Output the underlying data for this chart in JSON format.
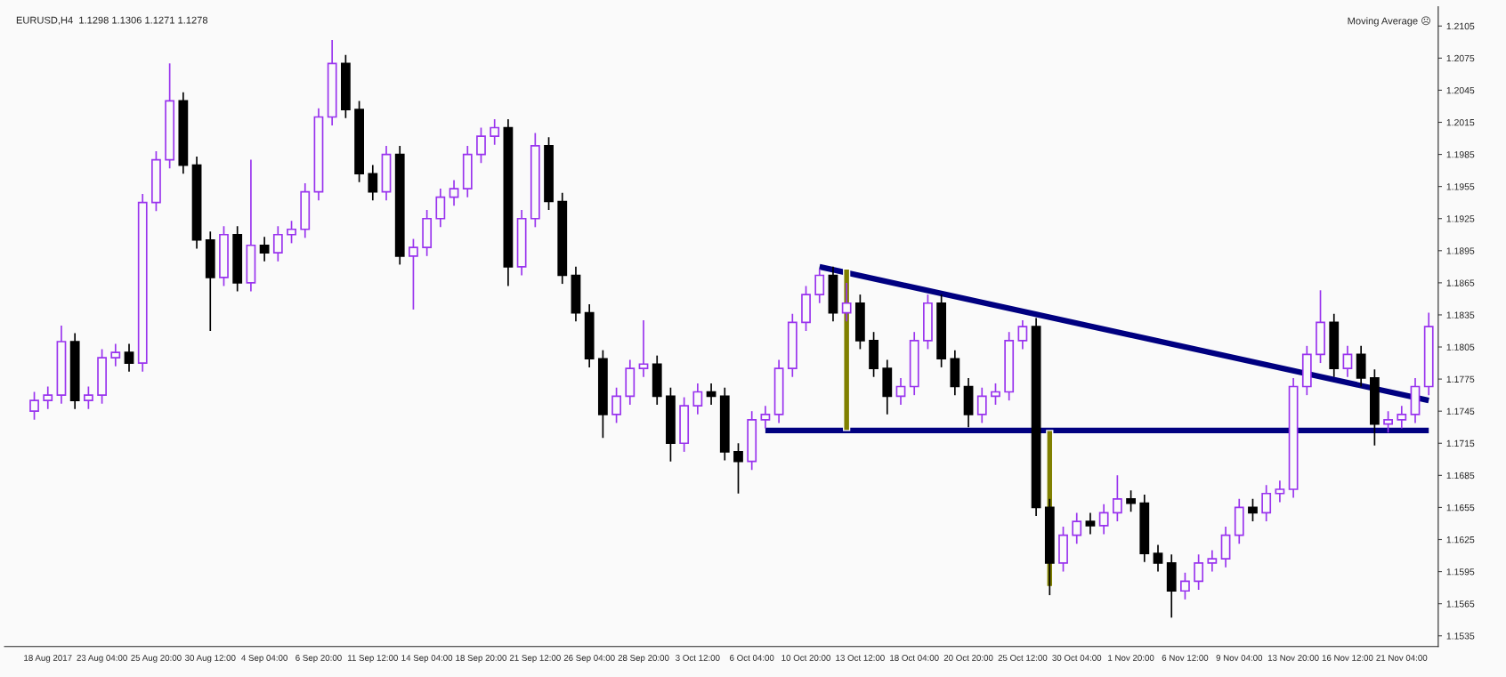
{
  "chart_data": {
    "type": "candlestick",
    "annotations": [
      "EURUSD,H4  1.1298 1.1306 1.1271 1.1278",
      "Moving Average ☹"
    ],
    "categories": [
      null,
      "18 Aug 2017",
      null,
      null,
      null,
      "23 Aug 04:00",
      null,
      null,
      null,
      "25 Aug 20:00",
      null,
      null,
      null,
      "30 Aug 12:00",
      null,
      null,
      null,
      "4 Sep 04:00",
      null,
      null,
      null,
      "6 Sep 20:00",
      null,
      null,
      null,
      "11 Sep 12:00",
      null,
      null,
      null,
      "14 Sep 04:00",
      null,
      null,
      null,
      "18 Sep 20:00",
      null,
      null,
      null,
      "21 Sep 12:00",
      null,
      null,
      null,
      "26 Sep 04:00",
      null,
      null,
      null,
      "28 Sep 20:00",
      null,
      null,
      null,
      "3 Oct 12:00",
      null,
      null,
      null,
      "6 Oct 04:00",
      null,
      null,
      null,
      "10 Oct 20:00",
      null,
      null,
      null,
      "13 Oct 12:00",
      null,
      null,
      null,
      "18 Oct 04:00",
      null,
      null,
      null,
      "20 Oct 20:00",
      null,
      null,
      null,
      "25 Oct 12:00",
      null,
      null,
      null,
      "30 Oct 04:00",
      null,
      null,
      null,
      "1 Nov 20:00",
      null,
      null,
      null,
      "6 Nov 12:00",
      null,
      null,
      null,
      "9 Nov 04:00",
      null,
      null,
      null,
      "13 Nov 20:00",
      null,
      null,
      null,
      "16 Nov 12:00",
      null,
      null,
      null,
      "21 Nov 04:00",
      null,
      null
    ],
    "ohlc": [
      [
        1.1745,
        1.1763,
        1.1737,
        1.1755
      ],
      [
        1.1755,
        1.1768,
        1.1747,
        1.176
      ],
      [
        1.176,
        1.1825,
        1.1752,
        1.181
      ],
      [
        1.181,
        1.1818,
        1.1747,
        1.1755
      ],
      [
        1.1755,
        1.1768,
        1.1747,
        1.176
      ],
      [
        1.176,
        1.1803,
        1.1752,
        1.1795
      ],
      [
        1.1795,
        1.1808,
        1.1787,
        1.18
      ],
      [
        1.18,
        1.1808,
        1.1782,
        1.179
      ],
      [
        1.179,
        1.1948,
        1.1782,
        1.194
      ],
      [
        1.194,
        1.1988,
        1.1932,
        1.198
      ],
      [
        1.198,
        1.207,
        1.1972,
        1.2035
      ],
      [
        1.2035,
        1.2043,
        1.1967,
        1.1975
      ],
      [
        1.1975,
        1.1983,
        1.1897,
        1.1905
      ],
      [
        1.1905,
        1.1913,
        1.182,
        1.187
      ],
      [
        1.187,
        1.1918,
        1.1862,
        1.191
      ],
      [
        1.191,
        1.1918,
        1.1857,
        1.1865
      ],
      [
        1.1865,
        1.198,
        1.1857,
        1.19
      ],
      [
        1.19,
        1.1908,
        1.1885,
        1.1893
      ],
      [
        1.1893,
        1.1918,
        1.1885,
        1.191
      ],
      [
        1.191,
        1.1923,
        1.1902,
        1.1915
      ],
      [
        1.1915,
        1.1958,
        1.1907,
        1.195
      ],
      [
        1.195,
        1.2028,
        1.1942,
        1.202
      ],
      [
        1.202,
        1.2092,
        1.2012,
        1.207
      ],
      [
        1.207,
        1.2078,
        1.2019,
        1.2027
      ],
      [
        1.2027,
        1.2035,
        1.1959,
        1.1967
      ],
      [
        1.1967,
        1.1975,
        1.1942,
        1.195
      ],
      [
        1.195,
        1.1993,
        1.1942,
        1.1985
      ],
      [
        1.1985,
        1.1993,
        1.1882,
        1.189
      ],
      [
        1.189,
        1.1906,
        1.184,
        1.1898
      ],
      [
        1.1898,
        1.1933,
        1.189,
        1.1925
      ],
      [
        1.1925,
        1.1953,
        1.1917,
        1.1945
      ],
      [
        1.1945,
        1.1961,
        1.1937,
        1.1953
      ],
      [
        1.1953,
        1.1993,
        1.1945,
        1.1985
      ],
      [
        1.1985,
        1.201,
        1.1977,
        1.2002
      ],
      [
        1.2002,
        1.2018,
        1.1994,
        1.201
      ],
      [
        1.201,
        1.2018,
        1.1862,
        1.188
      ],
      [
        1.188,
        1.1933,
        1.1872,
        1.1925
      ],
      [
        1.1925,
        1.2005,
        1.1917,
        1.1993
      ],
      [
        1.1993,
        1.2001,
        1.1933,
        1.1941
      ],
      [
        1.1941,
        1.1949,
        1.1864,
        1.1872
      ],
      [
        1.1872,
        1.188,
        1.1829,
        1.1837
      ],
      [
        1.1837,
        1.1845,
        1.1786,
        1.1794
      ],
      [
        1.1794,
        1.1802,
        1.172,
        1.1742
      ],
      [
        1.1742,
        1.1767,
        1.1734,
        1.1759
      ],
      [
        1.1759,
        1.1793,
        1.1751,
        1.1785
      ],
      [
        1.1785,
        1.183,
        1.1777,
        1.1789
      ],
      [
        1.1789,
        1.1797,
        1.1751,
        1.1759
      ],
      [
        1.1759,
        1.1767,
        1.1698,
        1.1715
      ],
      [
        1.1715,
        1.1758,
        1.1707,
        1.175
      ],
      [
        1.175,
        1.1771,
        1.1742,
        1.1763
      ],
      [
        1.1763,
        1.1771,
        1.1751,
        1.1759
      ],
      [
        1.1759,
        1.1767,
        1.1699,
        1.1707
      ],
      [
        1.1707,
        1.1715,
        1.1668,
        1.1698
      ],
      [
        1.1698,
        1.1745,
        1.169,
        1.1737
      ],
      [
        1.1737,
        1.175,
        1.1729,
        1.1742
      ],
      [
        1.1742,
        1.1793,
        1.1734,
        1.1785
      ],
      [
        1.1785,
        1.1836,
        1.1777,
        1.1828
      ],
      [
        1.1828,
        1.1862,
        1.182,
        1.1854
      ],
      [
        1.1854,
        1.1878,
        1.1846,
        1.1872
      ],
      [
        1.1872,
        1.188,
        1.1829,
        1.1837
      ],
      [
        1.1837,
        1.1865,
        1.1829,
        1.1846
      ],
      [
        1.1846,
        1.1854,
        1.1803,
        1.1811
      ],
      [
        1.1811,
        1.1819,
        1.1777,
        1.1785
      ],
      [
        1.1785,
        1.1793,
        1.1742,
        1.1759
      ],
      [
        1.1759,
        1.1776,
        1.1751,
        1.1768
      ],
      [
        1.1768,
        1.1819,
        1.176,
        1.1811
      ],
      [
        1.1811,
        1.1854,
        1.1803,
        1.1846
      ],
      [
        1.1846,
        1.1854,
        1.1786,
        1.1794
      ],
      [
        1.1794,
        1.1802,
        1.176,
        1.1768
      ],
      [
        1.1768,
        1.1776,
        1.173,
        1.1742
      ],
      [
        1.1742,
        1.1767,
        1.1734,
        1.1759
      ],
      [
        1.1759,
        1.1771,
        1.1751,
        1.1763
      ],
      [
        1.1763,
        1.1819,
        1.1755,
        1.1811
      ],
      [
        1.1811,
        1.183,
        1.1803,
        1.1824
      ],
      [
        1.1824,
        1.1832,
        1.1647,
        1.1655
      ],
      [
        1.1655,
        1.1663,
        1.1573,
        1.1603
      ],
      [
        1.1603,
        1.1637,
        1.1595,
        1.1629
      ],
      [
        1.1629,
        1.165,
        1.1621,
        1.1642
      ],
      [
        1.1642,
        1.165,
        1.163,
        1.1638
      ],
      [
        1.1638,
        1.1658,
        1.163,
        1.165
      ],
      [
        1.165,
        1.1685,
        1.1642,
        1.1663
      ],
      [
        1.1663,
        1.1671,
        1.1651,
        1.1659
      ],
      [
        1.1659,
        1.1667,
        1.1604,
        1.1612
      ],
      [
        1.1612,
        1.162,
        1.1595,
        1.1603
      ],
      [
        1.1603,
        1.1611,
        1.1552,
        1.1577
      ],
      [
        1.1577,
        1.1594,
        1.1569,
        1.1586
      ],
      [
        1.1586,
        1.1611,
        1.1578,
        1.1603
      ],
      [
        1.1603,
        1.1615,
        1.1595,
        1.1607
      ],
      [
        1.1607,
        1.1637,
        1.1599,
        1.1629
      ],
      [
        1.1629,
        1.1663,
        1.1621,
        1.1655
      ],
      [
        1.1655,
        1.1663,
        1.1642,
        1.165
      ],
      [
        1.165,
        1.1676,
        1.1642,
        1.1668
      ],
      [
        1.1668,
        1.168,
        1.166,
        1.1672
      ],
      [
        1.1672,
        1.1776,
        1.1664,
        1.1768
      ],
      [
        1.1768,
        1.1806,
        1.176,
        1.1798
      ],
      [
        1.1798,
        1.1858,
        1.179,
        1.1828
      ],
      [
        1.1828,
        1.1836,
        1.1777,
        1.1785
      ],
      [
        1.1785,
        1.1806,
        1.1777,
        1.1798
      ],
      [
        1.1798,
        1.1806,
        1.1768,
        1.1776
      ],
      [
        1.1776,
        1.1784,
        1.1713,
        1.1733
      ],
      [
        1.1733,
        1.1745,
        1.1725,
        1.1737
      ],
      [
        1.1737,
        1.175,
        1.1729,
        1.1742
      ],
      [
        1.1742,
        1.1776,
        1.1734,
        1.1768
      ],
      [
        1.1768,
        1.1837,
        1.176,
        1.1824
      ]
    ],
    "colors": [
      "#9933ee",
      "#9933ee",
      "#9933ee",
      "#000000",
      "#9933ee",
      "#9933ee",
      "#9933ee",
      "#000000",
      "#9933ee",
      "#9933ee",
      "#9933ee",
      "#000000",
      "#000000",
      "#000000",
      "#9933ee",
      "#000000",
      "#9933ee",
      "#000000",
      "#9933ee",
      "#9933ee",
      "#9933ee",
      "#9933ee",
      "#9933ee",
      "#000000",
      "#000000",
      "#000000",
      "#9933ee",
      "#000000",
      "#9933ee",
      "#9933ee",
      "#9933ee",
      "#9933ee",
      "#9933ee",
      "#9933ee",
      "#9933ee",
      "#000000",
      "#9933ee",
      "#9933ee",
      "#000000",
      "#000000",
      "#000000",
      "#000000",
      "#000000",
      "#9933ee",
      "#9933ee",
      "#9933ee",
      "#000000",
      "#000000",
      "#9933ee",
      "#9933ee",
      "#000000",
      "#000000",
      "#000000",
      "#9933ee",
      "#9933ee",
      "#9933ee",
      "#9933ee",
      "#9933ee",
      "#9933ee",
      "#000000",
      "#9933ee",
      "#000000",
      "#000000",
      "#000000",
      "#9933ee",
      "#9933ee",
      "#9933ee",
      "#000000",
      "#000000",
      "#000000",
      "#9933ee",
      "#9933ee",
      "#9933ee",
      "#9933ee",
      "#000000",
      "#000000",
      "#9933ee",
      "#9933ee",
      "#000000",
      "#9933ee",
      "#9933ee",
      "#000000",
      "#000000",
      "#000000",
      "#000000",
      "#9933ee",
      "#9933ee",
      "#9933ee",
      "#9933ee",
      "#9933ee",
      "#000000",
      "#9933ee",
      "#9933ee",
      "#9933ee",
      "#9933ee",
      "#9933ee",
      "#000000",
      "#9933ee",
      "#000000",
      "#000000",
      "#9933ee",
      "#9933ee",
      "#9933ee",
      "#9933ee"
    ],
    "series": [
      {
        "type": "line",
        "color": "#000080",
        "values": [
          null,
          null,
          null,
          null,
          null,
          null,
          null,
          null,
          null,
          null,
          null,
          null,
          null,
          null,
          null,
          null,
          null,
          null,
          null,
          null,
          null,
          null,
          null,
          null,
          null,
          null,
          null,
          null,
          null,
          null,
          null,
          null,
          null,
          null,
          null,
          null,
          null,
          null,
          null,
          null,
          null,
          null,
          null,
          null,
          null,
          null,
          null,
          null,
          null,
          null,
          null,
          null,
          null,
          null,
          null,
          null,
          null,
          null,
          1.188,
          null,
          null,
          null,
          null,
          null,
          null,
          null,
          null,
          null,
          null,
          null,
          null,
          null,
          null,
          null,
          null,
          null,
          null,
          null,
          null,
          null,
          null,
          null,
          null,
          null,
          null,
          null,
          null,
          null,
          null,
          null,
          null,
          null,
          null,
          null,
          null,
          null,
          null,
          null,
          null,
          null,
          null,
          null,
          null,
          1.1755
        ]
      },
      {
        "type": "line",
        "color": "#000080",
        "values": [
          null,
          null,
          null,
          null,
          null,
          null,
          null,
          null,
          null,
          null,
          null,
          null,
          null,
          null,
          null,
          null,
          null,
          null,
          null,
          null,
          null,
          null,
          null,
          null,
          null,
          null,
          null,
          null,
          null,
          null,
          null,
          null,
          null,
          null,
          null,
          null,
          null,
          null,
          null,
          null,
          null,
          null,
          null,
          null,
          null,
          null,
          null,
          null,
          null,
          null,
          null,
          null,
          null,
          null,
          1.1727,
          null,
          null,
          null,
          null,
          null,
          null,
          null,
          null,
          null,
          null,
          null,
          null,
          null,
          null,
          null,
          null,
          null,
          null,
          null,
          null,
          null,
          null,
          null,
          null,
          null,
          null,
          null,
          null,
          null,
          null,
          null,
          null,
          null,
          null,
          null,
          null,
          null,
          null,
          null,
          null,
          null,
          null,
          null,
          null,
          null,
          null,
          null,
          null,
          1.1727
        ]
      },
      {
        "type": "bar",
        "color": "#808000",
        "values": [
          null,
          null,
          null,
          null,
          null,
          null,
          null,
          null,
          null,
          null,
          null,
          null,
          null,
          null,
          null,
          null,
          null,
          null,
          null,
          null,
          null,
          null,
          null,
          null,
          null,
          null,
          null,
          null,
          null,
          null,
          null,
          null,
          null,
          null,
          null,
          null,
          null,
          null,
          null,
          null,
          null,
          null,
          null,
          null,
          null,
          null,
          null,
          null,
          null,
          null,
          null,
          null,
          null,
          null,
          null,
          null,
          null,
          null,
          null,
          null,
          0.0151,
          null,
          null,
          null,
          null,
          null,
          null,
          null,
          null,
          null,
          null,
          null,
          null,
          null,
          null,
          -0.0146,
          null,
          null,
          null,
          null,
          null,
          null,
          null,
          null,
          null,
          null,
          null,
          null,
          null,
          null,
          null,
          null,
          null,
          null,
          null,
          null,
          null,
          null,
          null,
          null,
          null,
          null,
          null,
          null
        ],
        "base": [
          null,
          null,
          null,
          null,
          null,
          null,
          null,
          null,
          null,
          null,
          null,
          null,
          null,
          null,
          null,
          null,
          null,
          null,
          null,
          null,
          null,
          null,
          null,
          null,
          null,
          null,
          null,
          null,
          null,
          null,
          null,
          null,
          null,
          null,
          null,
          null,
          null,
          null,
          null,
          null,
          null,
          null,
          null,
          null,
          null,
          null,
          null,
          null,
          null,
          null,
          null,
          null,
          null,
          null,
          null,
          null,
          null,
          null,
          null,
          null,
          1.1727,
          null,
          null,
          null,
          null,
          null,
          null,
          null,
          null,
          null,
          null,
          null,
          null,
          null,
          null,
          1.1727,
          null,
          null,
          null,
          null,
          null,
          null,
          null,
          null,
          null,
          null,
          null,
          null,
          null,
          null,
          null,
          null,
          null,
          null,
          null,
          null,
          null,
          null,
          null,
          null,
          null,
          null,
          null,
          null
        ]
      }
    ],
    "ylim": [
      1.1525,
      1.2123
    ],
    "yticks": [
      {
        "value": 1.1535,
        "label": "1.1535"
      },
      {
        "value": 1.1565,
        "label": "1.1565"
      },
      {
        "value": 1.1595,
        "label": "1.1595"
      },
      {
        "value": 1.1625,
        "label": "1.1625"
      },
      {
        "value": 1.1655,
        "label": "1.1655"
      },
      {
        "value": 1.1685,
        "label": "1.1685"
      },
      {
        "value": 1.1715,
        "label": "1.1715"
      },
      {
        "value": 1.1745,
        "label": "1.1745"
      },
      {
        "value": 1.1775,
        "label": "1.1775"
      },
      {
        "value": 1.1805,
        "label": "1.1805"
      },
      {
        "value": 1.1835,
        "label": "1.1835"
      },
      {
        "value": 1.1865,
        "label": "1.1865"
      },
      {
        "value": 1.1895,
        "label": "1.1895"
      },
      {
        "value": 1.1925,
        "label": "1.1925"
      },
      {
        "value": 1.1955,
        "label": "1.1955"
      },
      {
        "value": 1.1985,
        "label": "1.1985"
      },
      {
        "value": 1.2015,
        "label": "1.2015"
      },
      {
        "value": 1.2045,
        "label": "1.2045"
      },
      {
        "value": 1.2075,
        "label": "1.2075"
      },
      {
        "value": 1.2105,
        "label": "1.2105"
      }
    ],
    "grid": false,
    "legend": false
  }
}
